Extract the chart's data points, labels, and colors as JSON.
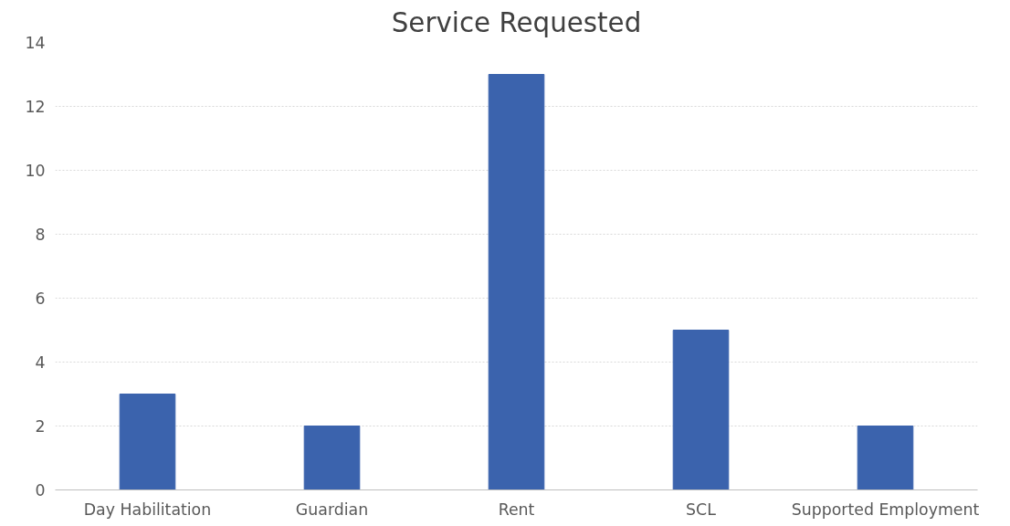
{
  "chart_data": {
    "type": "bar",
    "title": "Service Requested",
    "categories": [
      "Day Habilitation",
      "Guardian",
      "Rent",
      "SCL",
      "Supported Employment"
    ],
    "values": [
      3,
      2,
      13,
      5,
      2
    ],
    "color": "#3b63ad",
    "ylim": [
      0,
      14
    ],
    "yticks": [
      0,
      2,
      4,
      6,
      8,
      10,
      12,
      14
    ],
    "grid": "y"
  }
}
